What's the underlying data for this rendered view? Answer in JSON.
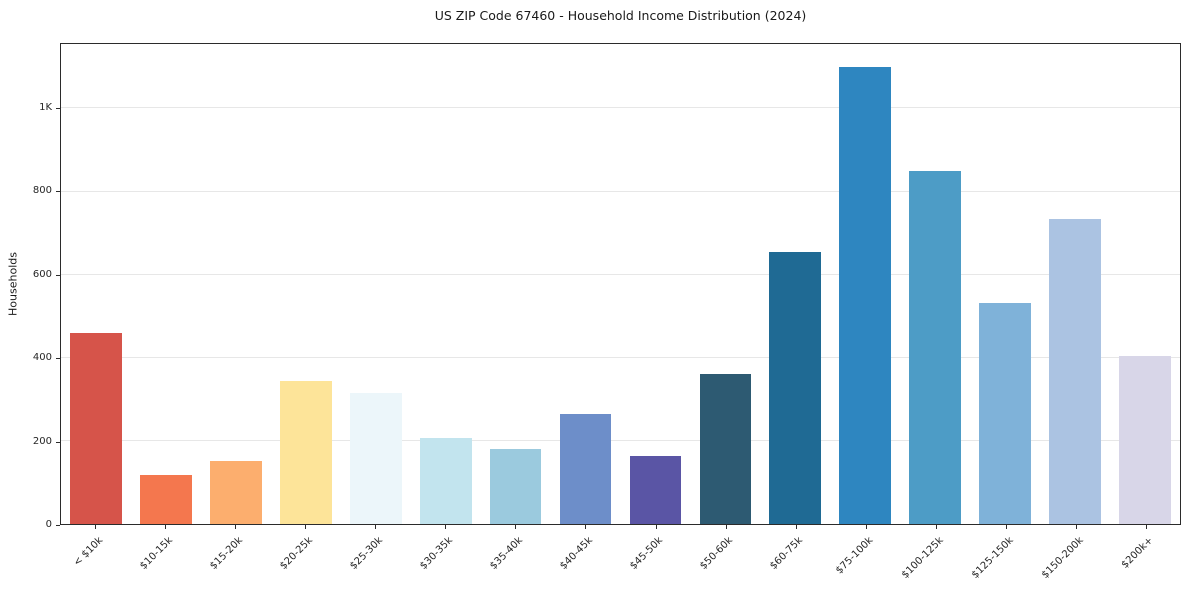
{
  "chart_data": {
    "type": "bar",
    "title": "US ZIP Code 67460 - Household Income Distribution (2024)",
    "xlabel": "",
    "ylabel": "Households",
    "categories": [
      "< $10k",
      "$10-15k",
      "$15-20k",
      "$20-25k",
      "$25-30k",
      "$30-35k",
      "$35-40k",
      "$40-45k",
      "$45-50k",
      "$50-60k",
      "$60-75k",
      "$75-100k",
      "$100-125k",
      "$125-150k",
      "$150-200k",
      "$200k+"
    ],
    "values": [
      460,
      118,
      152,
      345,
      315,
      207,
      180,
      264,
      163,
      360,
      655,
      1100,
      850,
      533,
      733,
      405
    ],
    "bar_colors": [
      "#d6544a",
      "#f4774e",
      "#fcae6e",
      "#fde499",
      "#ecf6fa",
      "#c2e4ee",
      "#9bcade",
      "#6d8ec9",
      "#5a55a5",
      "#2d5a72",
      "#1f6a94",
      "#2e86c0",
      "#4d9cc6",
      "#7fb2d9",
      "#abc3e2",
      "#d8d6e8"
    ],
    "yticks": [
      {
        "value": 0,
        "label": "0"
      },
      {
        "value": 200,
        "label": "200"
      },
      {
        "value": 400,
        "label": "400"
      },
      {
        "value": 600,
        "label": "600"
      },
      {
        "value": 800,
        "label": "800"
      },
      {
        "value": 1000,
        "label": "1K"
      }
    ],
    "ylim": [
      0,
      1155
    ],
    "grid": true,
    "legend_position": "none",
    "grid_color": "#e7e7e7",
    "background_color": "#ffffff"
  }
}
